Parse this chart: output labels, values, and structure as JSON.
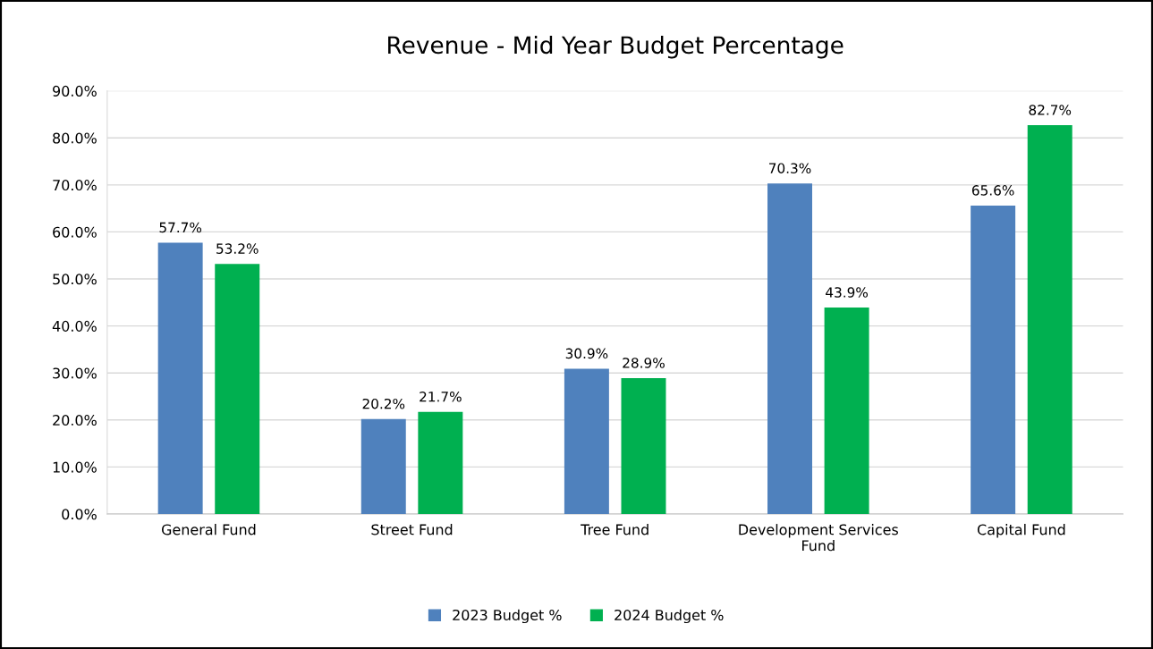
{
  "chart_data": {
    "type": "bar",
    "title": "Revenue - Mid Year Budget Percentage",
    "categories": [
      "General Fund",
      "Street Fund",
      "Tree Fund",
      "Development Services Fund",
      "Capital Fund"
    ],
    "series": [
      {
        "name": "2023 Budget %",
        "color": "#4f81bd",
        "values": [
          57.7,
          20.2,
          30.9,
          70.3,
          65.6
        ],
        "value_labels": [
          "57.7%",
          "20.2%",
          "30.9%",
          "70.3%",
          "65.6%"
        ]
      },
      {
        "name": "2024 Budget %",
        "color": "#00b050",
        "values": [
          53.2,
          21.7,
          28.9,
          43.9,
          82.7
        ],
        "value_labels": [
          "53.2%",
          "21.7%",
          "28.9%",
          "43.9%",
          "82.7%"
        ]
      }
    ],
    "ylim": [
      0,
      90
    ],
    "yticks": [
      {
        "value": 0,
        "label": "0.0%"
      },
      {
        "value": 10,
        "label": "10.0%"
      },
      {
        "value": 20,
        "label": "20.0%"
      },
      {
        "value": 30,
        "label": "30.0%"
      },
      {
        "value": 40,
        "label": "40.0%"
      },
      {
        "value": 50,
        "label": "50.0%"
      },
      {
        "value": 60,
        "label": "60.0%"
      },
      {
        "value": 70,
        "label": "70.0%"
      },
      {
        "value": 80,
        "label": "80.0%"
      },
      {
        "value": 90,
        "label": "90.0%"
      }
    ],
    "grid": "y",
    "legend": "bottom"
  }
}
